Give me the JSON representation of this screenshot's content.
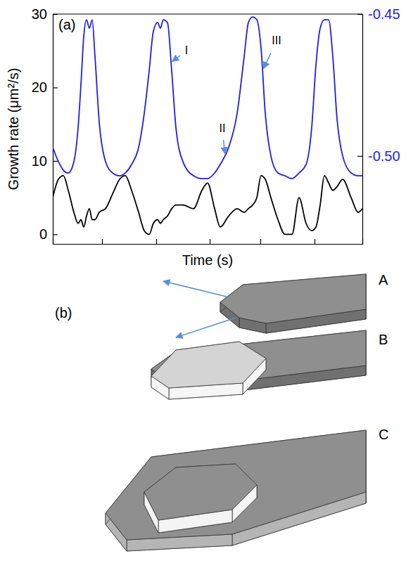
{
  "chart_data": {
    "type": "line",
    "panel_label": "(a)",
    "x_label": "Time (s)",
    "y_label": "Growth rate (μm²/s)",
    "tick_labels": "y",
    "xlim": [
      0,
      440
    ],
    "xticks": [
      70,
      147,
      223,
      295,
      372
    ],
    "ylim": [
      -1.3,
      30
    ],
    "yticks": [
      0,
      10,
      20,
      30
    ],
    "y2lim": [
      -0.531,
      -0.45
    ],
    "y2ticks": [
      -0.45,
      {
        "value": -0.5,
        "label": "-0.50"
      }
    ],
    "x": [
      0,
      8,
      15,
      22,
      30,
      36,
      40,
      44,
      48,
      52,
      56,
      60,
      66,
      75,
      85,
      95,
      103,
      112,
      122,
      130,
      137,
      143,
      149,
      153,
      157,
      163,
      169,
      175,
      185,
      200,
      212,
      220,
      230,
      238,
      250,
      262,
      272,
      278,
      284,
      290,
      296,
      302,
      310,
      320,
      330,
      340,
      350,
      360,
      368,
      374,
      380,
      386,
      392,
      398,
      404,
      412,
      424,
      434,
      440
    ],
    "series": [
      {
        "color": "#000000",
        "values": [
          5,
          7.5,
          8,
          6,
          3,
          1.5,
          2,
          1,
          2.5,
          3.5,
          2,
          2,
          3,
          3.5,
          5.5,
          7.5,
          8,
          6,
          3,
          0.5,
          0,
          1.5,
          2,
          1.5,
          2,
          2.5,
          3.5,
          4,
          4,
          3.5,
          6,
          7,
          3.5,
          1,
          2.5,
          3.5,
          3,
          3.5,
          4,
          5,
          8,
          7.5,
          5,
          2,
          0,
          0,
          5,
          1.5,
          0.5,
          1,
          4,
          8,
          7,
          6,
          6.5,
          7.5,
          5,
          3,
          3.5
        ]
      },
      {
        "color": "#1f1fe6",
        "axis": "y2",
        "values": [
          -0.497,
          -0.502,
          -0.505,
          -0.506,
          -0.502,
          -0.49,
          -0.475,
          -0.458,
          -0.452,
          -0.455,
          -0.452,
          -0.465,
          -0.488,
          -0.502,
          -0.506,
          -0.507,
          -0.506,
          -0.503,
          -0.497,
          -0.485,
          -0.47,
          -0.456,
          -0.453,
          -0.455,
          -0.452,
          -0.453,
          -0.47,
          -0.49,
          -0.502,
          -0.507,
          -0.508,
          -0.508,
          -0.506,
          -0.503,
          -0.497,
          -0.485,
          -0.465,
          -0.453,
          -0.451,
          -0.452,
          -0.462,
          -0.485,
          -0.5,
          -0.506,
          -0.507,
          -0.508,
          -0.506,
          -0.503,
          -0.49,
          -0.468,
          -0.455,
          -0.452,
          -0.452,
          -0.465,
          -0.487,
          -0.5,
          -0.506,
          -0.507,
          -0.507
        ]
      }
    ],
    "annotations": [
      {
        "text": "I",
        "x": 168,
        "y": -0.467,
        "axis": "y2"
      },
      {
        "text": "II",
        "x": 245,
        "y": -0.5,
        "axis": "y2"
      },
      {
        "text": "III",
        "x": 298,
        "y": -0.47,
        "axis": "y2"
      }
    ]
  },
  "diagram": {
    "panel_label": "(b)",
    "labels": [
      "A",
      "B",
      "C"
    ]
  }
}
